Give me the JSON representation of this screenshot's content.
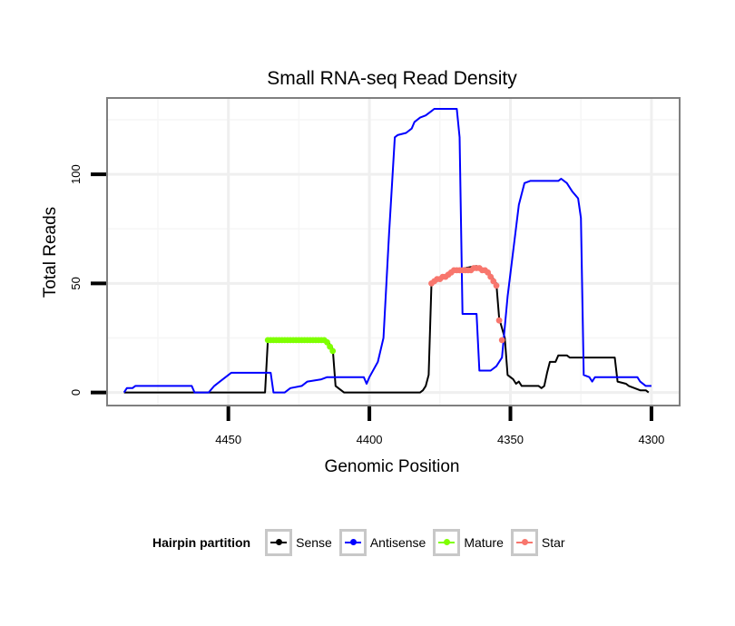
{
  "chart_data": {
    "type": "line",
    "title": "Small RNA-seq Read Density",
    "xlabel": "Genomic Position",
    "ylabel": "Total Reads",
    "xlim": [
      4493,
      4290
    ],
    "x_reversed": true,
    "ylim": [
      -6,
      135
    ],
    "x_ticks": [
      4450,
      4400,
      4350,
      4300
    ],
    "x_tick_labels": [
      "4450",
      "4400",
      "4350",
      "4300"
    ],
    "y_ticks": [
      0,
      50,
      100
    ],
    "y_tick_labels": [
      "0",
      "50",
      "100"
    ],
    "grid": true,
    "legend": {
      "title": "Hairpin partition",
      "placement": "bottom"
    },
    "series": [
      {
        "name": "Sense",
        "color": "#000000",
        "marker": "none",
        "points": [
          [
            4487,
            0
          ],
          [
            4437,
            0
          ],
          [
            4436,
            24
          ],
          [
            4415,
            24
          ],
          [
            4413,
            20
          ],
          [
            4412,
            3
          ],
          [
            4410,
            1
          ],
          [
            4409,
            0
          ],
          [
            4390,
            0
          ],
          [
            4382,
            0
          ],
          [
            4381,
            1
          ],
          [
            4380,
            3
          ],
          [
            4379,
            8
          ],
          [
            4378,
            50
          ],
          [
            4376,
            52
          ],
          [
            4370,
            56
          ],
          [
            4362,
            58
          ],
          [
            4357,
            54
          ],
          [
            4355,
            50
          ],
          [
            4354,
            34
          ],
          [
            4352,
            25
          ],
          [
            4351,
            8
          ],
          [
            4349,
            6
          ],
          [
            4348,
            4
          ],
          [
            4347,
            5
          ],
          [
            4346,
            3
          ],
          [
            4345,
            3
          ],
          [
            4340,
            3
          ],
          [
            4339,
            2
          ],
          [
            4338,
            3
          ],
          [
            4337,
            9
          ],
          [
            4336,
            14
          ],
          [
            4334,
            14
          ],
          [
            4333,
            17
          ],
          [
            4330,
            17
          ],
          [
            4329,
            16
          ],
          [
            4313,
            16
          ],
          [
            4312,
            5
          ],
          [
            4309,
            4
          ],
          [
            4308,
            3
          ],
          [
            4304,
            1
          ],
          [
            4302,
            1
          ],
          [
            4301,
            0
          ]
        ]
      },
      {
        "name": "Antisense",
        "color": "#0000ff",
        "marker": "none",
        "points": [
          [
            4487,
            0
          ],
          [
            4486,
            2
          ],
          [
            4484,
            2
          ],
          [
            4483,
            3
          ],
          [
            4463,
            3
          ],
          [
            4462,
            0
          ],
          [
            4457,
            0
          ],
          [
            4455,
            3
          ],
          [
            4453,
            5
          ],
          [
            4450,
            8
          ],
          [
            4449,
            9
          ],
          [
            4436,
            9
          ],
          [
            4435,
            9
          ],
          [
            4434,
            0
          ],
          [
            4430,
            0
          ],
          [
            4428,
            2
          ],
          [
            4424,
            3
          ],
          [
            4422,
            5
          ],
          [
            4417,
            6
          ],
          [
            4415,
            7
          ],
          [
            4403,
            7
          ],
          [
            4402,
            7
          ],
          [
            4401,
            4
          ],
          [
            4400,
            7
          ],
          [
            4397,
            14
          ],
          [
            4395,
            25
          ],
          [
            4393,
            73
          ],
          [
            4391,
            117
          ],
          [
            4390,
            118
          ],
          [
            4387,
            119
          ],
          [
            4385,
            121
          ],
          [
            4384,
            124
          ],
          [
            4382,
            126
          ],
          [
            4380,
            127
          ],
          [
            4378,
            129
          ],
          [
            4377,
            130
          ],
          [
            4369,
            130
          ],
          [
            4368,
            117
          ],
          [
            4367,
            36
          ],
          [
            4362,
            36
          ],
          [
            4361,
            10
          ],
          [
            4357,
            10
          ],
          [
            4355,
            12
          ],
          [
            4353,
            16
          ],
          [
            4351,
            44
          ],
          [
            4349,
            65
          ],
          [
            4347,
            86
          ],
          [
            4345,
            96
          ],
          [
            4343,
            97
          ],
          [
            4340,
            97
          ],
          [
            4333,
            97
          ],
          [
            4332,
            98
          ],
          [
            4330,
            96
          ],
          [
            4328,
            92
          ],
          [
            4326,
            89
          ],
          [
            4325,
            80
          ],
          [
            4324,
            8
          ],
          [
            4322,
            7
          ],
          [
            4321,
            5
          ],
          [
            4320,
            7
          ],
          [
            4305,
            7
          ],
          [
            4304,
            5
          ],
          [
            4302,
            3
          ],
          [
            4300,
            3
          ]
        ]
      },
      {
        "name": "Mature",
        "color": "#7fff00",
        "marker": "dot",
        "points": [
          [
            4436,
            24
          ],
          [
            4435,
            24
          ],
          [
            4434,
            24
          ],
          [
            4433,
            24
          ],
          [
            4432,
            24
          ],
          [
            4431,
            24
          ],
          [
            4430,
            24
          ],
          [
            4429,
            24
          ],
          [
            4428,
            24
          ],
          [
            4427,
            24
          ],
          [
            4426,
            24
          ],
          [
            4425,
            24
          ],
          [
            4424,
            24
          ],
          [
            4423,
            24
          ],
          [
            4422,
            24
          ],
          [
            4421,
            24
          ],
          [
            4420,
            24
          ],
          [
            4419,
            24
          ],
          [
            4418,
            24
          ],
          [
            4417,
            24
          ],
          [
            4416,
            24
          ],
          [
            4415,
            23
          ],
          [
            4414,
            21
          ],
          [
            4413,
            19
          ]
        ]
      },
      {
        "name": "Star",
        "color": "#f8766d",
        "marker": "dot",
        "points": [
          [
            4378,
            50
          ],
          [
            4377,
            51
          ],
          [
            4376,
            52
          ],
          [
            4375,
            52
          ],
          [
            4374,
            53
          ],
          [
            4373,
            53
          ],
          [
            4372,
            54
          ],
          [
            4371,
            55
          ],
          [
            4370,
            56
          ],
          [
            4369,
            56
          ],
          [
            4368,
            56
          ],
          [
            4367,
            56
          ],
          [
            4366,
            56
          ],
          [
            4365,
            56
          ],
          [
            4364,
            56
          ],
          [
            4363,
            57
          ],
          [
            4362,
            57
          ],
          [
            4361,
            57
          ],
          [
            4360,
            56
          ],
          [
            4359,
            56
          ],
          [
            4358,
            55
          ],
          [
            4357,
            53
          ],
          [
            4356,
            51
          ],
          [
            4355,
            49
          ],
          [
            4354,
            33
          ],
          [
            4353,
            24
          ]
        ]
      }
    ]
  }
}
